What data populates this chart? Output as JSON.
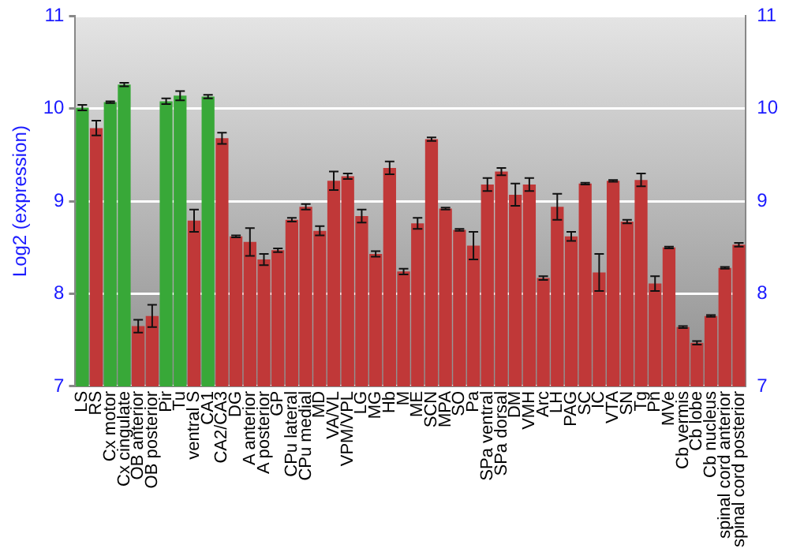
{
  "chart_data": {
    "type": "bar",
    "ylabel": "Log2 (expression)",
    "categories": [
      "LS",
      "RS",
      "Cx motor",
      "Cx cingulate",
      "OB anterior",
      "OB posterior",
      "Pir",
      "Tu",
      "ventral S",
      "CA1",
      "CA2/CA3",
      "DG",
      "A anterior",
      "A posterior",
      "GP",
      "CPu lateral",
      "CPu medial",
      "MD",
      "VA/VL",
      "VPM/VPL",
      "LG",
      "MG",
      "Hb",
      "M",
      "ME",
      "SCN",
      "MPA",
      "SO",
      "Pa",
      "SPa ventral",
      "SPa dorsal",
      "DM",
      "VMH",
      "Arc",
      "LH",
      "PAG",
      "SC",
      "IC",
      "VTA",
      "SN",
      "Tg",
      "Pn",
      "MVe",
      "Cb vermis",
      "Cb lobe",
      "Cb nucleus",
      "spinal cord anterior",
      "spinal cord posterior"
    ],
    "values": [
      10.01,
      9.79,
      10.07,
      10.26,
      7.65,
      7.76,
      10.08,
      10.14,
      8.79,
      10.13,
      9.68,
      8.62,
      8.56,
      8.37,
      8.47,
      8.8,
      8.94,
      8.68,
      9.22,
      9.27,
      8.84,
      8.43,
      9.36,
      8.24,
      8.76,
      9.67,
      8.92,
      8.69,
      8.52,
      9.18,
      9.32,
      9.07,
      9.18,
      8.17,
      8.94,
      8.62,
      9.19,
      8.23,
      9.22,
      8.78,
      9.23,
      8.11,
      8.5,
      7.64,
      7.47,
      7.76,
      8.28,
      8.53
    ],
    "errors": [
      0.03,
      0.08,
      0.01,
      0.02,
      0.07,
      0.12,
      0.03,
      0.05,
      0.12,
      0.02,
      0.06,
      0.01,
      0.15,
      0.06,
      0.02,
      0.02,
      0.03,
      0.05,
      0.1,
      0.03,
      0.07,
      0.03,
      0.07,
      0.03,
      0.06,
      0.02,
      0.01,
      0.01,
      0.15,
      0.07,
      0.04,
      0.12,
      0.07,
      0.02,
      0.14,
      0.05,
      0.01,
      0.2,
      0.01,
      0.02,
      0.07,
      0.08,
      0.01,
      0.01,
      0.02,
      0.01,
      0.01,
      0.02
    ],
    "colors": [
      "#38a838",
      "#c03838",
      "#38a838",
      "#38a838",
      "#c03838",
      "#c03838",
      "#38a838",
      "#38a838",
      "#c03838",
      "#38a838",
      "#c03838",
      "#c03838",
      "#c03838",
      "#c03838",
      "#c03838",
      "#c03838",
      "#c03838",
      "#c03838",
      "#c03838",
      "#c03838",
      "#c03838",
      "#c03838",
      "#c03838",
      "#c03838",
      "#c03838",
      "#c03838",
      "#c03838",
      "#c03838",
      "#c03838",
      "#c03838",
      "#c03838",
      "#c03838",
      "#c03838",
      "#c03838",
      "#c03838",
      "#c03838",
      "#c03838",
      "#c03838",
      "#c03838",
      "#c03838",
      "#c03838",
      "#c03838",
      "#c03838",
      "#c03838",
      "#c03838",
      "#c03838",
      "#c03838",
      "#c03838"
    ],
    "ylim": [
      7,
      11
    ],
    "yticks": [
      7,
      8,
      9,
      10,
      11
    ],
    "y2lim": [
      7,
      11
    ],
    "y2ticks": [
      7,
      8,
      9,
      10,
      11
    ],
    "grid": "y",
    "legend": false
  }
}
